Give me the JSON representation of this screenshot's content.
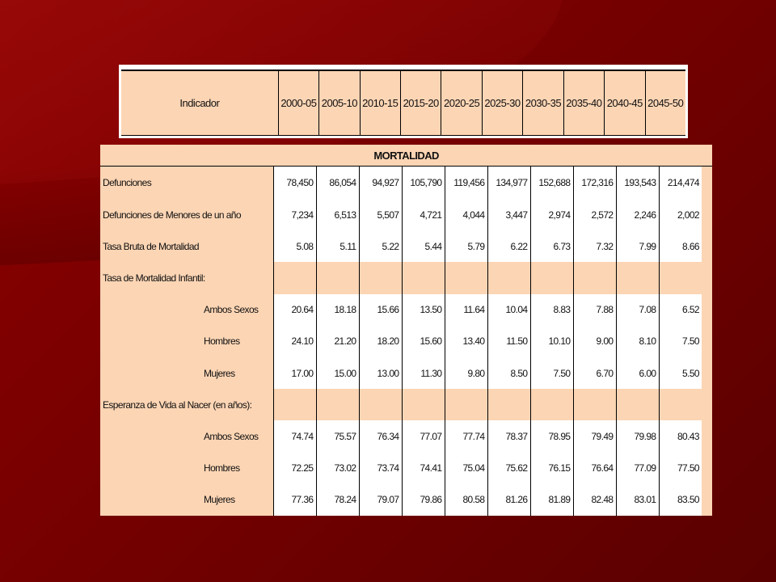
{
  "header": {
    "indicator_label": "Indicador",
    "periods": [
      "2000-05",
      "2005-10",
      "2010-15",
      "2015-20",
      "2020-25",
      "2025-30",
      "2030-35",
      "2035-40",
      "2040-45",
      "2045-50"
    ]
  },
  "table": {
    "section_title": "MORTALIDAD",
    "rows": [
      {
        "label": "Defunciones",
        "indent": false,
        "values": [
          "78,450",
          "86,054",
          "94,927",
          "105,790",
          "119,456",
          "134,977",
          "152,688",
          "172,316",
          "193,543",
          "214,474"
        ]
      },
      {
        "label": "Defunciones de Menores de un año",
        "indent": false,
        "values": [
          "7,234",
          "6,513",
          "5,507",
          "4,721",
          "4,044",
          "3,447",
          "2,974",
          "2,572",
          "2,246",
          "2,002"
        ]
      },
      {
        "label": "Tasa Bruta de Mortalidad",
        "indent": false,
        "values": [
          "5.08",
          "5.11",
          "5.22",
          "5.44",
          "5.79",
          "6.22",
          "6.73",
          "7.32",
          "7.99",
          "8.66"
        ]
      },
      {
        "label": "Tasa de Mortalidad Infantil:",
        "indent": false,
        "values": [
          "",
          "",
          "",
          "",
          "",
          "",
          "",
          "",
          "",
          ""
        ]
      },
      {
        "label": "Ambos Sexos",
        "indent": true,
        "values": [
          "20.64",
          "18.18",
          "15.66",
          "13.50",
          "11.64",
          "10.04",
          "8.83",
          "7.88",
          "7.08",
          "6.52"
        ]
      },
      {
        "label": "Hombres",
        "indent": true,
        "values": [
          "24.10",
          "21.20",
          "18.20",
          "15.60",
          "13.40",
          "11.50",
          "10.10",
          "9.00",
          "8.10",
          "7.50"
        ]
      },
      {
        "label": "Mujeres",
        "indent": true,
        "values": [
          "17.00",
          "15.00",
          "13.00",
          "11.30",
          "9.80",
          "8.50",
          "7.50",
          "6.70",
          "6.00",
          "5.50"
        ]
      },
      {
        "label": "Esperanza de Vida al Nacer (en años):",
        "indent": false,
        "values": [
          "",
          "",
          "",
          "",
          "",
          "",
          "",
          "",
          "",
          ""
        ]
      },
      {
        "label": "Ambos Sexos",
        "indent": true,
        "values": [
          "74.74",
          "75.57",
          "76.34",
          "77.07",
          "77.74",
          "78.37",
          "78.95",
          "79.49",
          "79.98",
          "80.43"
        ]
      },
      {
        "label": "Hombres",
        "indent": true,
        "values": [
          "72.25",
          "73.02",
          "73.74",
          "74.41",
          "75.04",
          "75.62",
          "76.15",
          "76.64",
          "77.09",
          "77.50"
        ]
      },
      {
        "label": "Mujeres",
        "indent": true,
        "values": [
          "77.36",
          "78.24",
          "79.07",
          "79.86",
          "80.58",
          "81.26",
          "81.89",
          "82.48",
          "83.01",
          "83.50"
        ]
      }
    ]
  }
}
